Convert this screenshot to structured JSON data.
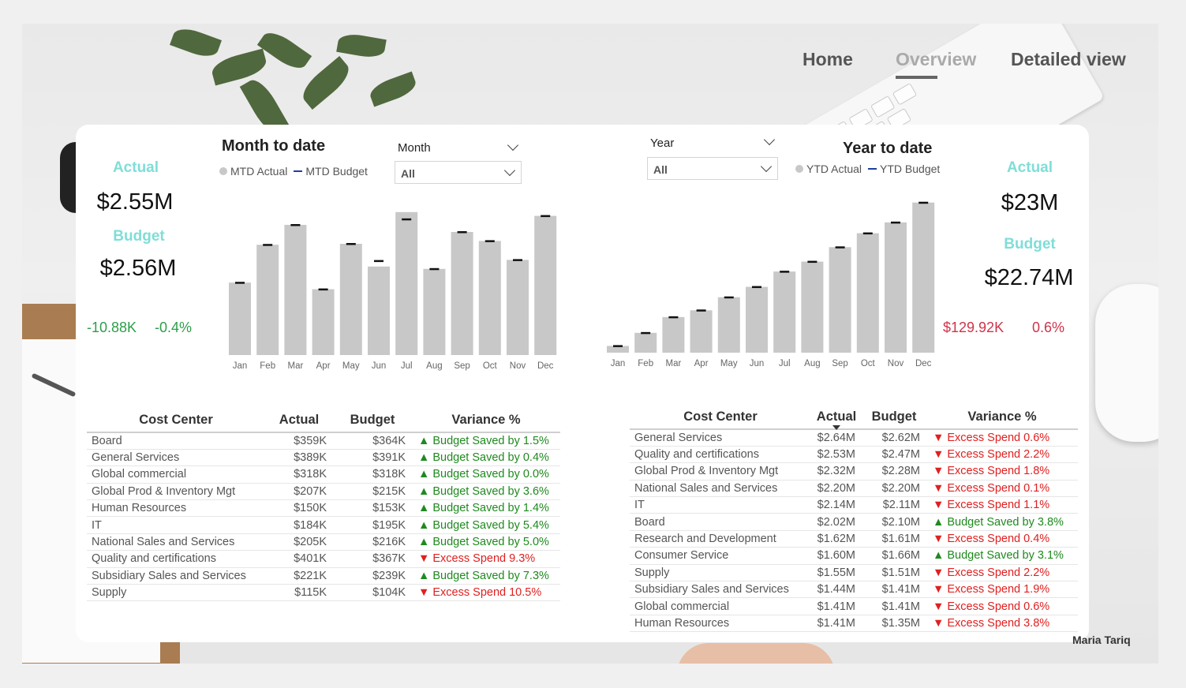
{
  "nav": {
    "home": "Home",
    "overview": "Overview",
    "detailed": "Detailed view"
  },
  "mtd": {
    "actual_label": "Actual",
    "actual_value": "$2.55M",
    "budget_label": "Budget",
    "budget_value": "$2.56M",
    "variance_abs": "-10.88K",
    "variance_pct": "-0.4%"
  },
  "ytd": {
    "actual_label": "Actual",
    "actual_value": "$23M",
    "budget_label": "Budget",
    "budget_value": "$22.74M",
    "variance_abs": "$129.92K",
    "variance_pct": "0.6%"
  },
  "slicers": {
    "month_label": "Month",
    "month_value": "All",
    "year_label": "Year",
    "year_value": "All"
  },
  "chart_data": [
    {
      "type": "bar",
      "title": "Month to date",
      "legend": [
        "MTD Actual",
        "MTD Budget"
      ],
      "categories": [
        "Jan",
        "Feb",
        "Mar",
        "Apr",
        "May",
        "Jun",
        "Jul",
        "Aug",
        "Sep",
        "Oct",
        "Nov",
        "Dec"
      ],
      "series": [
        {
          "name": "MTD Actual",
          "values": [
            0.153,
            0.233,
            0.275,
            0.139,
            0.235,
            0.187,
            0.302,
            0.182,
            0.26,
            0.241,
            0.201,
            0.294
          ]
        },
        {
          "name": "MTD Budget",
          "values": [
            0.153,
            0.233,
            0.275,
            0.139,
            0.235,
            0.199,
            0.287,
            0.182,
            0.26,
            0.241,
            0.201,
            0.294
          ]
        }
      ],
      "ylim": [
        0,
        0.35
      ],
      "legend_position": "top-left",
      "grid": false
    },
    {
      "type": "bar",
      "title": "Year to date",
      "legend": [
        "YTD Actual",
        "YTD Budget"
      ],
      "categories": [
        "Jan",
        "Feb",
        "Mar",
        "Apr",
        "May",
        "Jun",
        "Jul",
        "Aug",
        "Sep",
        "Oct",
        "Nov",
        "Dec"
      ],
      "series": [
        {
          "name": "YTD Actual",
          "values": [
            1.5,
            4.4,
            7.9,
            9.4,
            12.3,
            14.6,
            18.0,
            20.2,
            23.4,
            26.5,
            28.9,
            33.3
          ]
        },
        {
          "name": "YTD Budget",
          "values": [
            1.5,
            4.4,
            7.9,
            9.4,
            12.3,
            14.6,
            18.0,
            20.2,
            23.4,
            26.5,
            28.9,
            33.3
          ]
        }
      ],
      "ylim": [
        0,
        35
      ],
      "legend_position": "top-left",
      "grid": false
    }
  ],
  "mtd_table": {
    "headers": [
      "Cost Center",
      "Actual",
      "Budget",
      "Variance %"
    ],
    "rows": [
      {
        "name": "Board",
        "actual": "$359K",
        "budget": "$364K",
        "variance": "▲ Budget Saved by 1.5%",
        "status": "saved"
      },
      {
        "name": "General Services",
        "actual": "$389K",
        "budget": "$391K",
        "variance": "▲ Budget Saved by 0.4%",
        "status": "saved"
      },
      {
        "name": "Global commercial",
        "actual": "$318K",
        "budget": "$318K",
        "variance": "▲ Budget Saved by 0.0%",
        "status": "saved"
      },
      {
        "name": "Global Prod & Inventory Mgt",
        "actual": "$207K",
        "budget": "$215K",
        "variance": "▲ Budget Saved by 3.6%",
        "status": "saved"
      },
      {
        "name": "Human Resources",
        "actual": "$150K",
        "budget": "$153K",
        "variance": "▲ Budget Saved by 1.4%",
        "status": "saved"
      },
      {
        "name": "IT",
        "actual": "$184K",
        "budget": "$195K",
        "variance": "▲ Budget Saved by 5.4%",
        "status": "saved"
      },
      {
        "name": "National Sales and Services",
        "actual": "$205K",
        "budget": "$216K",
        "variance": "▲ Budget Saved by 5.0%",
        "status": "saved"
      },
      {
        "name": "Quality and certifications",
        "actual": "$401K",
        "budget": "$367K",
        "variance": "▼ Excess Spend 9.3%",
        "status": "excess"
      },
      {
        "name": "Subsidiary Sales and Services",
        "actual": "$221K",
        "budget": "$239K",
        "variance": "▲ Budget Saved by 7.3%",
        "status": "saved"
      },
      {
        "name": "Supply",
        "actual": "$115K",
        "budget": "$104K",
        "variance": "▼ Excess Spend 10.5%",
        "status": "excess"
      }
    ]
  },
  "ytd_table": {
    "headers": [
      "Cost Center",
      "Actual",
      "Budget",
      "Variance %"
    ],
    "rows": [
      {
        "name": "General Services",
        "actual": "$2.64M",
        "budget": "$2.62M",
        "variance": "▼ Excess Spend 0.6%",
        "status": "excess"
      },
      {
        "name": "Quality and certifications",
        "actual": "$2.53M",
        "budget": "$2.47M",
        "variance": "▼ Excess Spend 2.2%",
        "status": "excess"
      },
      {
        "name": "Global Prod & Inventory Mgt",
        "actual": "$2.32M",
        "budget": "$2.28M",
        "variance": "▼ Excess Spend 1.8%",
        "status": "excess"
      },
      {
        "name": "National Sales and Services",
        "actual": "$2.20M",
        "budget": "$2.20M",
        "variance": "▼ Excess Spend 0.1%",
        "status": "excess"
      },
      {
        "name": "IT",
        "actual": "$2.14M",
        "budget": "$2.11M",
        "variance": "▼ Excess Spend 1.1%",
        "status": "excess"
      },
      {
        "name": "Board",
        "actual": "$2.02M",
        "budget": "$2.10M",
        "variance": "▲ Budget Saved by 3.8%",
        "status": "saved"
      },
      {
        "name": "Research and Development",
        "actual": "$1.62M",
        "budget": "$1.61M",
        "variance": "▼ Excess Spend 0.4%",
        "status": "excess"
      },
      {
        "name": "Consumer Service",
        "actual": "$1.60M",
        "budget": "$1.66M",
        "variance": "▲ Budget Saved by 3.1%",
        "status": "saved"
      },
      {
        "name": "Supply",
        "actual": "$1.55M",
        "budget": "$1.51M",
        "variance": "▼ Excess Spend 2.2%",
        "status": "excess"
      },
      {
        "name": "Subsidiary Sales and Services",
        "actual": "$1.44M",
        "budget": "$1.41M",
        "variance": "▼ Excess Spend 1.9%",
        "status": "excess"
      },
      {
        "name": "Global commercial",
        "actual": "$1.41M",
        "budget": "$1.41M",
        "variance": "▼ Excess Spend 0.6%",
        "status": "excess"
      },
      {
        "name": "Human Resources",
        "actual": "$1.41M",
        "budget": "$1.35M",
        "variance": "▼ Excess Spend 3.8%",
        "status": "excess"
      }
    ]
  },
  "author": "Maria Tariq",
  "colors": {
    "kpi_label": "#7fded7",
    "bar": "#c8c8c8",
    "budget_marker": "#111111",
    "saved": "#1e8a1e",
    "excess": "#e02020",
    "variance_green": "#2e9e4a",
    "variance_red": "#d0334a"
  }
}
